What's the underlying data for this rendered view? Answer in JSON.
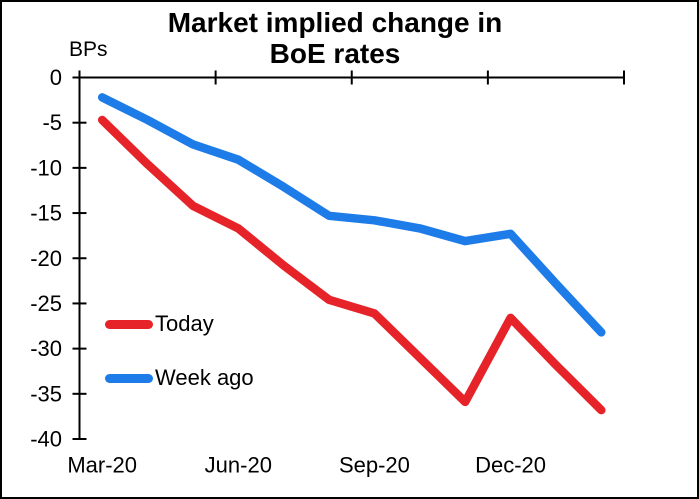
{
  "header": {
    "title_line1": "Market implied change in",
    "title_line2": "BoE rates"
  },
  "chart_data": {
    "type": "line",
    "title": "Market implied change in BoE rates",
    "ylabel": "BPs",
    "xlabel": "",
    "ylim": [
      -40,
      0
    ],
    "y_ticks": [
      0,
      -5,
      -10,
      -15,
      -20,
      -25,
      -30,
      -35,
      -40
    ],
    "y_tick_labels": [
      "0",
      "-5",
      "-10",
      "-15",
      "-20",
      "-25",
      "-30",
      "-35",
      "-40"
    ],
    "categories": [
      "Mar-20",
      "Apr-20",
      "May-20",
      "Jun-20",
      "Jul-20",
      "Aug-20",
      "Sep-20",
      "Oct-20",
      "Nov-20",
      "Dec-20",
      "Jan-21",
      "Feb-21"
    ],
    "x_tick_labels": [
      "Mar-20",
      "Jun-20",
      "Sep-20",
      "Dec-20"
    ],
    "x_tick_label_indices": [
      0,
      3,
      6,
      9
    ],
    "grid": false,
    "legend_position": "inside-left",
    "axis_color": "#000000",
    "series": [
      {
        "name": "Today",
        "color": "#e62329",
        "values": [
          -4.7,
          -9.6,
          -14.2,
          -16.7,
          -20.8,
          -24.6,
          -26.1,
          -31.0,
          -35.9,
          -26.6,
          -31.8,
          -36.8
        ]
      },
      {
        "name": "Week ago",
        "color": "#1e7ce9",
        "values": [
          -2.2,
          -4.7,
          -7.4,
          -9.1,
          -12.1,
          -15.3,
          -15.8,
          -16.7,
          -18.1,
          -17.3,
          -22.8,
          -28.2
        ]
      }
    ]
  }
}
